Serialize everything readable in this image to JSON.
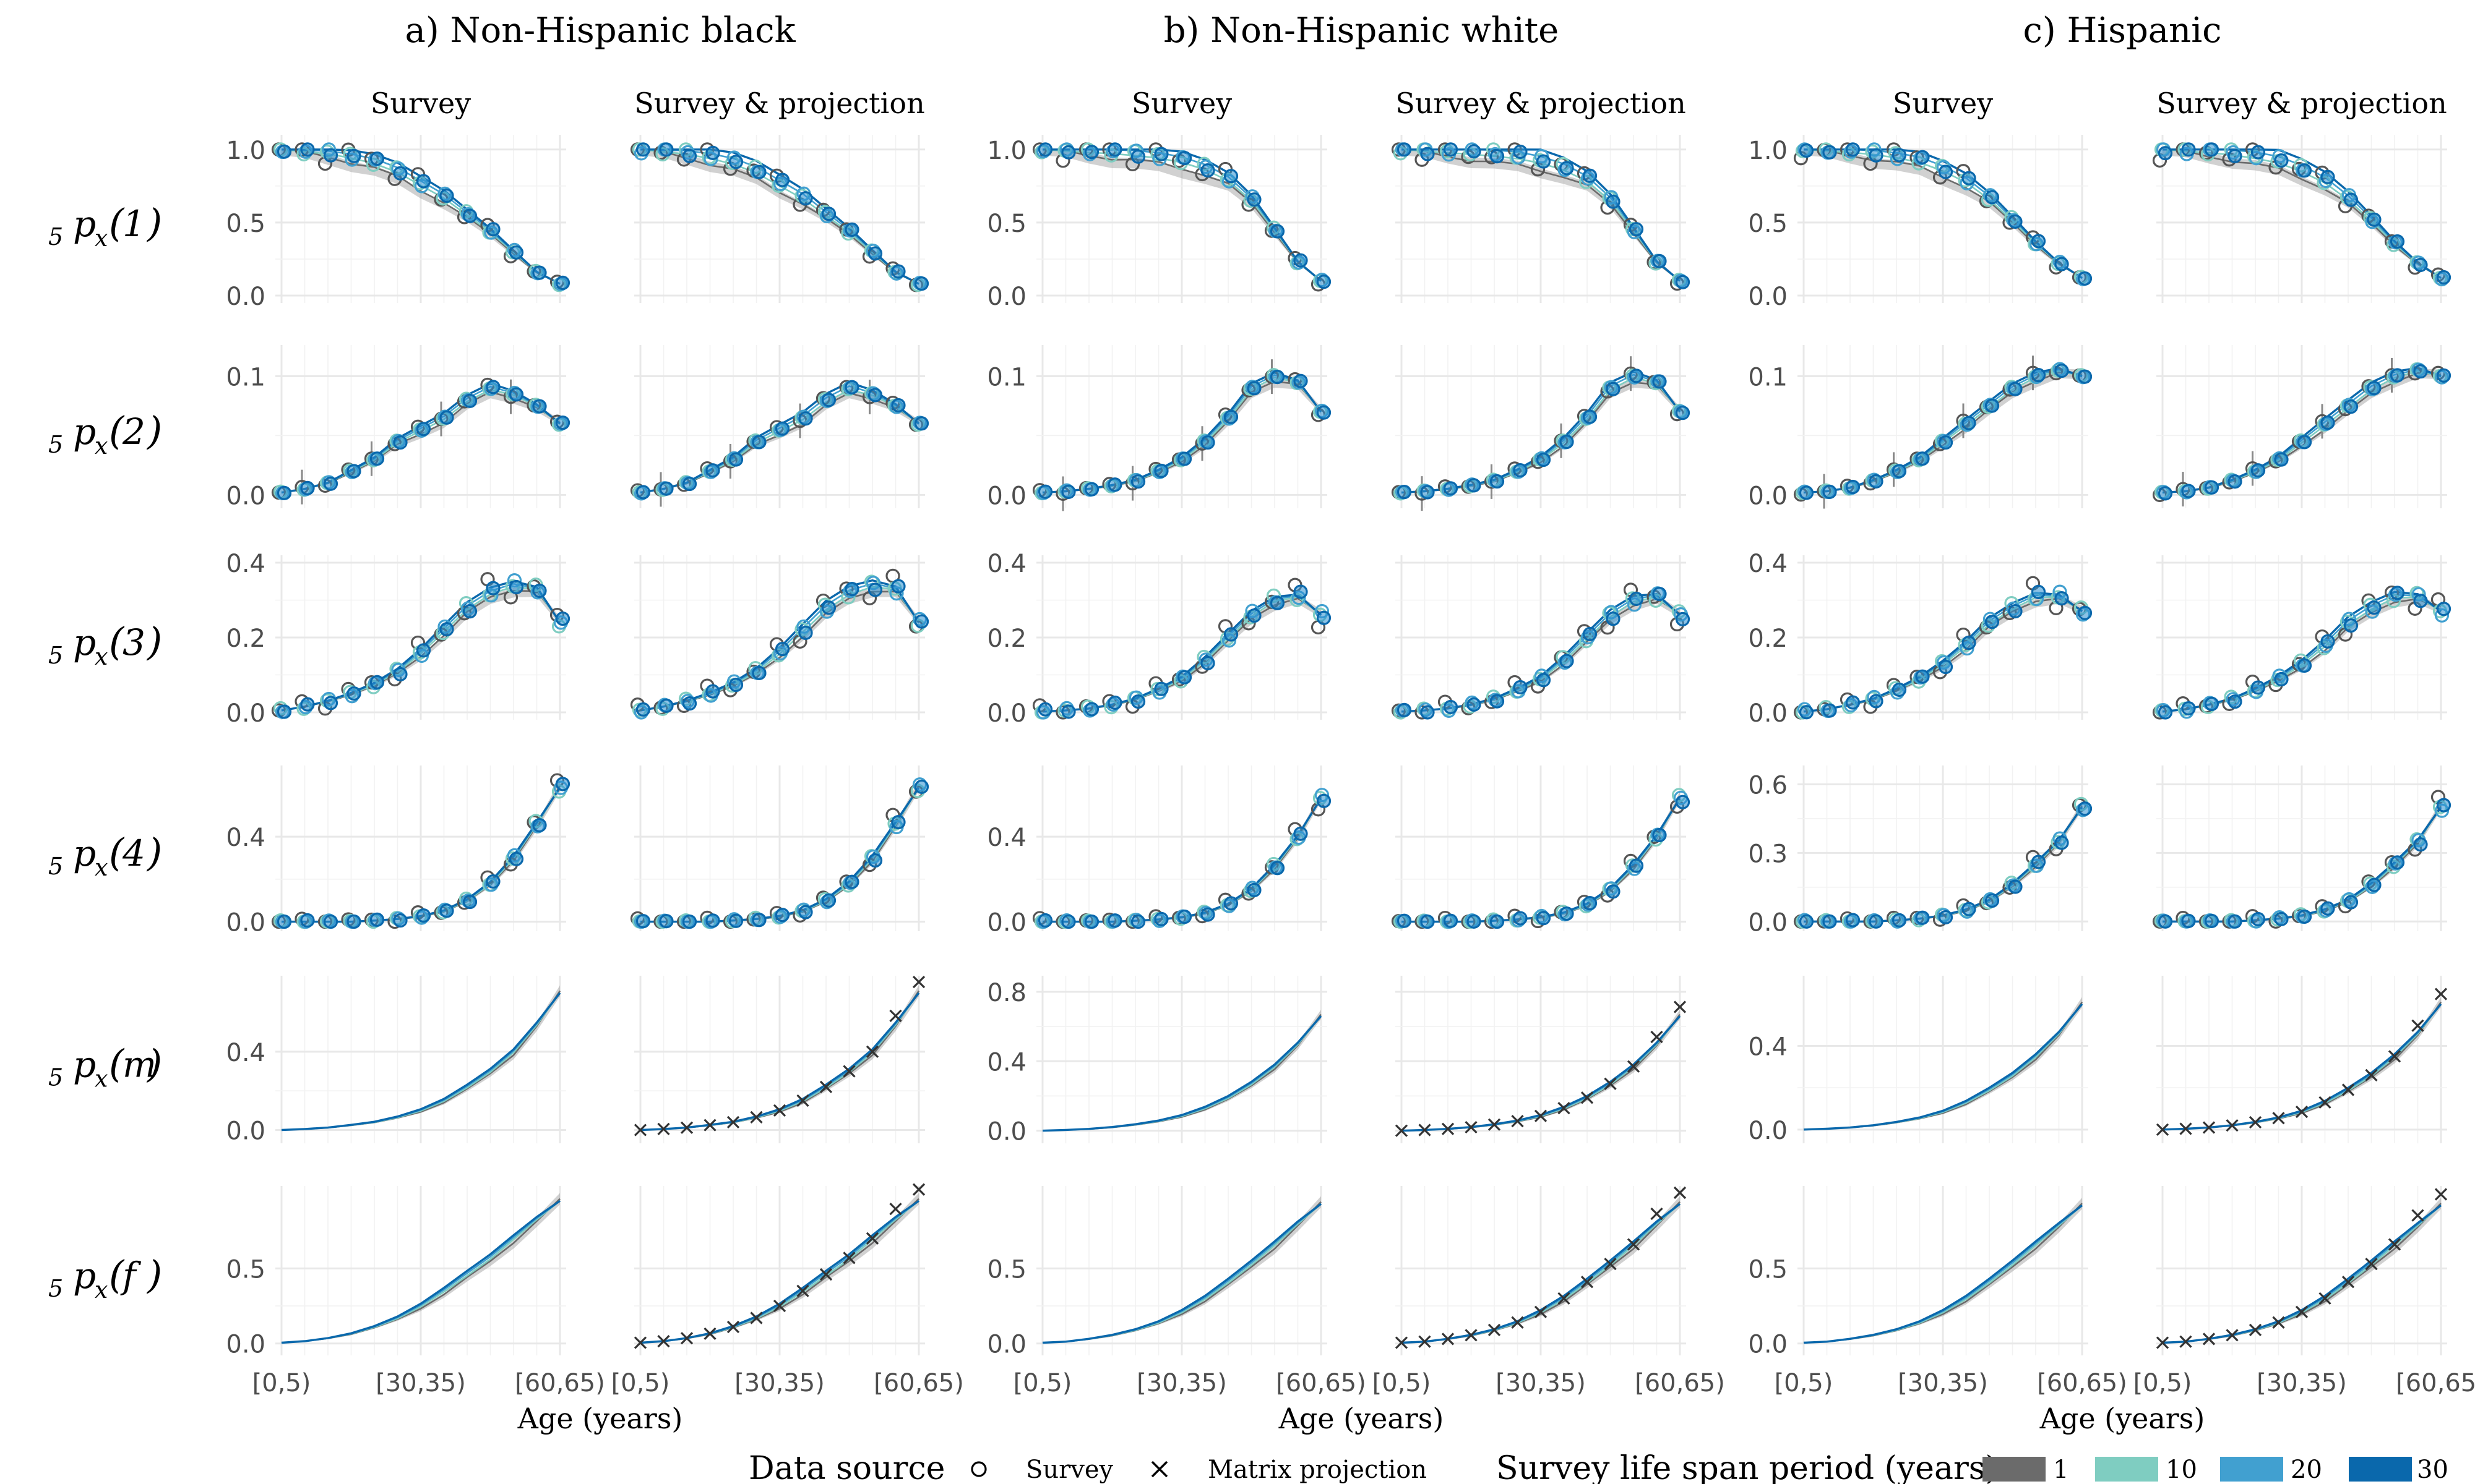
{
  "chart_data": {
    "type": "line",
    "group_titles": [
      "a) Non-Hispanic black",
      "b) Non-Hispanic white",
      "c) Hispanic"
    ],
    "panel_titles": [
      "Survey",
      "Survey & projection"
    ],
    "x_ticks": [
      "[0,5)",
      "[30,35)",
      "[60,65)"
    ],
    "xlabel": "Age (years)",
    "age_groups": [
      "[0,5)",
      "[5,10)",
      "[10,15)",
      "[15,20)",
      "[20,25)",
      "[25,30)",
      "[30,35)",
      "[35,40)",
      "[40,45)",
      "[45,50)",
      "[50,55)",
      "[55,60)",
      "[60,65)"
    ],
    "legend": {
      "source_title": "Data source",
      "source_items": [
        {
          "symbol": "circle",
          "label": "Survey"
        },
        {
          "symbol": "cross",
          "label": "Matrix projection"
        }
      ],
      "period_title": "Survey life span period (years)",
      "period_items": [
        {
          "label": "1",
          "color": "#6b6b6b"
        },
        {
          "label": "10",
          "color": "#7fcdc1"
        },
        {
          "label": "20",
          "color": "#41a0d0"
        },
        {
          "label": "30",
          "color": "#0a68ac"
        }
      ]
    },
    "rows": [
      {
        "label": {
          "pre": "5",
          "mid": "p",
          "sub": "x",
          "arg": "1"
        },
        "ylims": [
          [
            0,
            1.05
          ],
          [
            0,
            1.05
          ],
          [
            0,
            1.05
          ]
        ],
        "yticks": [
          [
            {
              "v": 0,
              "t": "0.0"
            },
            {
              "v": 0.5,
              "t": "0.5"
            },
            {
              "v": 1,
              "t": "1.0"
            }
          ],
          [
            {
              "v": 0,
              "t": "0.0"
            },
            {
              "v": 0.5,
              "t": "0.5"
            },
            {
              "v": 1,
              "t": "1.0"
            }
          ],
          [
            {
              "v": 0,
              "t": "0.0"
            },
            {
              "v": 0.5,
              "t": "0.5"
            },
            {
              "v": 1,
              "t": "1.0"
            }
          ]
        ],
        "series": [
          [
            1.0,
            0.99,
            0.98,
            0.955,
            0.92,
            0.86,
            0.77,
            0.68,
            0.56,
            0.44,
            0.3,
            0.16,
            0.08
          ],
          [
            1.0,
            0.995,
            0.99,
            0.985,
            0.975,
            0.96,
            0.93,
            0.88,
            0.8,
            0.66,
            0.45,
            0.23,
            0.1
          ],
          [
            1.0,
            0.995,
            0.99,
            0.98,
            0.96,
            0.93,
            0.87,
            0.79,
            0.67,
            0.52,
            0.36,
            0.22,
            0.12
          ]
        ]
      },
      {
        "label": {
          "pre": "5",
          "mid": "p",
          "sub": "x",
          "arg": "2"
        },
        "ylims": [
          [
            -0.005,
            0.12
          ],
          [
            -0.005,
            0.12
          ],
          [
            -0.005,
            0.12
          ]
        ],
        "yticks": [
          [
            {
              "v": 0,
              "t": "0.0"
            },
            {
              "v": 0.1,
              "t": "0.1"
            }
          ],
          [
            {
              "v": 0,
              "t": "0.0"
            },
            {
              "v": 0.1,
              "t": "0.1"
            }
          ],
          [
            {
              "v": 0,
              "t": "0.0"
            },
            {
              "v": 0.1,
              "t": "0.1"
            }
          ]
        ],
        "series": [
          [
            0.002,
            0.005,
            0.01,
            0.02,
            0.03,
            0.045,
            0.055,
            0.065,
            0.08,
            0.09,
            0.085,
            0.075,
            0.06
          ],
          [
            0.002,
            0.003,
            0.005,
            0.008,
            0.012,
            0.02,
            0.03,
            0.045,
            0.065,
            0.09,
            0.1,
            0.095,
            0.07
          ],
          [
            0.002,
            0.003,
            0.006,
            0.012,
            0.02,
            0.03,
            0.045,
            0.06,
            0.075,
            0.09,
            0.1,
            0.105,
            0.1
          ]
        ]
      },
      {
        "label": {
          "pre": "5",
          "mid": "p",
          "sub": "x",
          "arg": "3"
        },
        "ylims": [
          [
            0,
            0.4
          ],
          [
            0,
            0.4
          ],
          [
            0,
            0.4
          ]
        ],
        "yticks": [
          [
            {
              "v": 0,
              "t": "0.0"
            },
            {
              "v": 0.2,
              "t": "0.2"
            },
            {
              "v": 0.4,
              "t": "0.4"
            }
          ],
          [
            {
              "v": 0,
              "t": "0.0"
            },
            {
              "v": 0.2,
              "t": "0.2"
            },
            {
              "v": 0.4,
              "t": "0.4"
            }
          ],
          [
            {
              "v": 0,
              "t": "0.0"
            },
            {
              "v": 0.2,
              "t": "0.2"
            },
            {
              "v": 0.4,
              "t": "0.4"
            }
          ]
        ],
        "series": [
          [
            0.005,
            0.015,
            0.03,
            0.05,
            0.075,
            0.11,
            0.16,
            0.22,
            0.28,
            0.32,
            0.34,
            0.33,
            0.24
          ],
          [
            0.002,
            0.005,
            0.01,
            0.02,
            0.035,
            0.06,
            0.09,
            0.14,
            0.2,
            0.26,
            0.3,
            0.31,
            0.26
          ],
          [
            0.002,
            0.008,
            0.02,
            0.035,
            0.06,
            0.09,
            0.13,
            0.18,
            0.24,
            0.28,
            0.31,
            0.31,
            0.27
          ]
        ]
      },
      {
        "label": {
          "pre": "5",
          "mid": "p",
          "sub": "x",
          "arg": "4"
        },
        "ylims": [
          [
            -0.01,
            0.7
          ],
          [
            -0.01,
            0.7
          ],
          [
            -0.01,
            0.65
          ]
        ],
        "yticks": [
          [
            {
              "v": 0,
              "t": "0.0"
            },
            {
              "v": 0.4,
              "t": "0.4"
            }
          ],
          [
            {
              "v": 0,
              "t": "0.0"
            },
            {
              "v": 0.4,
              "t": "0.4"
            }
          ],
          [
            {
              "v": 0,
              "t": "0.0"
            },
            {
              "v": 0.3,
              "t": "0.3"
            },
            {
              "v": 0.6,
              "t": "0.6"
            }
          ]
        ],
        "series": [
          [
            0.0,
            0.0,
            0.0,
            0.0,
            0.005,
            0.012,
            0.025,
            0.05,
            0.1,
            0.18,
            0.3,
            0.46,
            0.63
          ],
          [
            0.0,
            0.0,
            0.0,
            0.0,
            0.004,
            0.01,
            0.02,
            0.04,
            0.08,
            0.15,
            0.26,
            0.4,
            0.58
          ],
          [
            0.0,
            0.0,
            0.0,
            0.0,
            0.005,
            0.012,
            0.025,
            0.05,
            0.09,
            0.16,
            0.25,
            0.35,
            0.5
          ]
        ]
      },
      {
        "label": {
          "pre": "5",
          "mid": "p",
          "sub": "x",
          "arg": "m"
        },
        "ylims": [
          [
            -0.03,
            0.75
          ],
          [
            -0.03,
            0.85
          ],
          [
            -0.03,
            0.7
          ]
        ],
        "yticks": [
          [
            {
              "v": 0,
              "t": "0.0"
            },
            {
              "v": 0.4,
              "t": "0.4"
            }
          ],
          [
            {
              "v": 0,
              "t": "0.0"
            },
            {
              "v": 0.4,
              "t": "0.4"
            },
            {
              "v": 0.8,
              "t": "0.8"
            }
          ],
          [
            {
              "v": 0,
              "t": "0.0"
            },
            {
              "v": 0.4,
              "t": "0.4"
            }
          ]
        ],
        "series": [
          [
            0.0,
            0.005,
            0.012,
            0.025,
            0.04,
            0.065,
            0.1,
            0.15,
            0.22,
            0.3,
            0.4,
            0.54,
            0.7
          ],
          [
            0.0,
            0.004,
            0.01,
            0.02,
            0.035,
            0.055,
            0.085,
            0.13,
            0.19,
            0.27,
            0.37,
            0.5,
            0.66
          ],
          [
            0.0,
            0.004,
            0.01,
            0.02,
            0.035,
            0.055,
            0.085,
            0.13,
            0.19,
            0.26,
            0.35,
            0.46,
            0.6
          ]
        ]
      },
      {
        "label": {
          "pre": "5",
          "mid": "p",
          "sub": "x",
          "arg": "f"
        },
        "ylims": [
          [
            -0.03,
            1.0
          ],
          [
            -0.03,
            1.0
          ],
          [
            -0.03,
            1.0
          ]
        ],
        "yticks": [
          [
            {
              "v": 0,
              "t": "0.0"
            },
            {
              "v": 0.5,
              "t": "0.5"
            }
          ],
          [
            {
              "v": 0,
              "t": "0.0"
            },
            {
              "v": 0.5,
              "t": "0.5"
            }
          ],
          [
            {
              "v": 0,
              "t": "0.0"
            },
            {
              "v": 0.5,
              "t": "0.5"
            }
          ]
        ],
        "series": [
          [
            0.005,
            0.015,
            0.035,
            0.065,
            0.11,
            0.17,
            0.25,
            0.35,
            0.46,
            0.57,
            0.7,
            0.83,
            0.95
          ],
          [
            0.005,
            0.012,
            0.03,
            0.055,
            0.09,
            0.14,
            0.21,
            0.3,
            0.41,
            0.53,
            0.66,
            0.8,
            0.93
          ],
          [
            0.005,
            0.012,
            0.03,
            0.055,
            0.09,
            0.14,
            0.21,
            0.3,
            0.41,
            0.53,
            0.66,
            0.79,
            0.92
          ]
        ]
      }
    ]
  }
}
